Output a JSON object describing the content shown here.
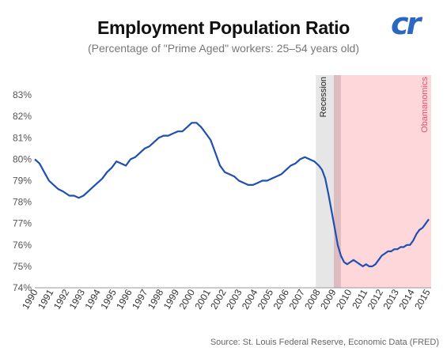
{
  "title": "Employment Population Ratio",
  "subtitle": "(Percentage of \"Prime Aged\" workers: 25–54 years old)",
  "logo_text": "cr",
  "source": "Source: St. Louis Federal Reserve, Economic Data (FRED)",
  "colors": {
    "line": "#1f4fb0",
    "recession_band": "#e6e6e6",
    "obama_band": "#fdd7da",
    "overlap_band": "#ddbcc0",
    "obama_label": "#e0556a",
    "recession_label": "#222222",
    "logo": "#2a66c2"
  },
  "chart_data": {
    "type": "line",
    "title": "Employment Population Ratio",
    "subtitle": "(Percentage of \"Prime Aged\" workers: 25–54 years old)",
    "xlabel": "",
    "ylabel": "",
    "xlim": [
      1990,
      2015.25
    ],
    "ylim": [
      74,
      83.5
    ],
    "y_ticks": [
      "74%",
      "75%",
      "76%",
      "77%",
      "78%",
      "79%",
      "80%",
      "81%",
      "82%",
      "83%"
    ],
    "y_tick_values": [
      74,
      75,
      76,
      77,
      78,
      79,
      80,
      81,
      82,
      83
    ],
    "x_ticks": [
      "1990",
      "1991",
      "1992",
      "1993",
      "1994",
      "1995",
      "1996",
      "1997",
      "1998",
      "1999",
      "2000",
      "2001",
      "2002",
      "2003",
      "2004",
      "2005",
      "2006",
      "2007",
      "2008",
      "2009",
      "2010",
      "2011",
      "2012",
      "2013",
      "2014",
      "2015"
    ],
    "grid": false,
    "bands": [
      {
        "label": "Recession",
        "x_start": 2007.9,
        "x_end": 2009.5
      },
      {
        "label": "Obamanomics",
        "x_start": 2009.05,
        "x_end": 2015.25
      }
    ],
    "series": [
      {
        "x": [
          1990.0,
          1990.3,
          1990.6,
          1990.9,
          1991.2,
          1991.5,
          1991.8,
          1992.2,
          1992.5,
          1992.8,
          1993.1,
          1993.4,
          1993.7,
          1994.0,
          1994.3,
          1994.6,
          1994.9,
          1995.2,
          1995.5,
          1995.8,
          1996.1,
          1996.4,
          1996.7,
          1997.0,
          1997.3,
          1997.6,
          1997.9,
          1998.2,
          1998.5,
          1998.8,
          1999.1,
          1999.4,
          1999.7,
          2000.0,
          2000.3,
          2000.6,
          2000.9,
          2001.2,
          2001.5,
          2001.8,
          2002.1,
          2002.4,
          2002.7,
          2003.0,
          2003.3,
          2003.6,
          2003.9,
          2004.2,
          2004.5,
          2004.8,
          2005.1,
          2005.4,
          2005.7,
          2006.0,
          2006.3,
          2006.6,
          2006.9,
          2007.2,
          2007.5,
          2007.8,
          2008.1,
          2008.3,
          2008.5,
          2008.7,
          2008.9,
          2009.1,
          2009.3,
          2009.5,
          2009.7,
          2009.9,
          2010.1,
          2010.3,
          2010.5,
          2010.7,
          2010.9,
          2011.1,
          2011.3,
          2011.5,
          2011.7,
          2011.9,
          2012.1,
          2012.3,
          2012.5,
          2012.7,
          2012.9,
          2013.1,
          2013.3,
          2013.5,
          2013.7,
          2013.9,
          2014.1,
          2014.3,
          2014.5,
          2014.7,
          2014.9,
          2015.1
        ],
        "y": [
          80.0,
          79.8,
          79.4,
          79.0,
          78.8,
          78.6,
          78.5,
          78.3,
          78.3,
          78.2,
          78.3,
          78.5,
          78.7,
          78.9,
          79.1,
          79.4,
          79.6,
          79.9,
          79.8,
          79.7,
          80.0,
          80.1,
          80.3,
          80.5,
          80.6,
          80.8,
          81.0,
          81.1,
          81.1,
          81.2,
          81.3,
          81.3,
          81.5,
          81.7,
          81.7,
          81.5,
          81.2,
          80.9,
          80.3,
          79.7,
          79.4,
          79.3,
          79.2,
          79.0,
          78.9,
          78.8,
          78.8,
          78.9,
          79.0,
          79.0,
          79.1,
          79.2,
          79.3,
          79.5,
          79.7,
          79.8,
          80.0,
          80.1,
          80.0,
          79.9,
          79.7,
          79.5,
          79.1,
          78.4,
          77.6,
          76.8,
          76.0,
          75.5,
          75.2,
          75.1,
          75.2,
          75.3,
          75.2,
          75.1,
          75.0,
          75.1,
          75.0,
          75.0,
          75.1,
          75.3,
          75.5,
          75.6,
          75.7,
          75.7,
          75.8,
          75.8,
          75.9,
          75.9,
          76.0,
          76.0,
          76.2,
          76.5,
          76.7,
          76.8,
          77.0,
          77.2
        ]
      }
    ]
  }
}
